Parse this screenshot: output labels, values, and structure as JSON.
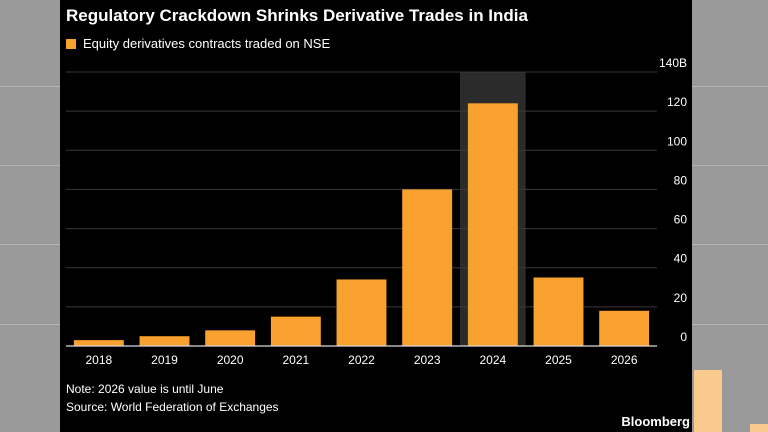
{
  "colors": {
    "bar": "#f9a12e",
    "background": "#000000",
    "shade": "#2b2b2b",
    "grid": "#3a3a3a",
    "text": "#ffffff"
  },
  "title": "Regulatory Crackdown Shrinks Derivative Trades in India",
  "legend_label": "Equity derivatives contracts traded on NSE",
  "note": "Note: 2026 value is until June",
  "source": "Source: World Federation of Exchanges",
  "brand": "Bloomberg",
  "chart_data": {
    "type": "bar",
    "title": "Regulatory Crackdown Shrinks Derivative Trades in India",
    "xlabel": "",
    "ylabel": "",
    "categories": [
      "2018",
      "2019",
      "2020",
      "2021",
      "2022",
      "2023",
      "2024",
      "2025",
      "2026"
    ],
    "series": [
      {
        "name": "Equity derivatives contracts traded on NSE",
        "values": [
          3,
          5,
          8,
          15,
          34,
          80,
          124,
          35,
          18
        ]
      }
    ],
    "ylim": [
      0,
      140
    ],
    "y_ticks": [
      0,
      20,
      40,
      60,
      80,
      100,
      120,
      140
    ],
    "y_tick_labels": [
      "0",
      "20",
      "40",
      "60",
      "80",
      "100",
      "120",
      "140B"
    ],
    "y_axis_side": "right",
    "highlighted_category": "2024",
    "grid": true,
    "legend_position": "top-left"
  }
}
